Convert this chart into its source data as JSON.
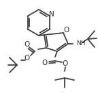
{
  "bg_color": "#ffffff",
  "line_color": "#404040",
  "line_width": 1.3,
  "figsize": [
    1.44,
    1.52
  ],
  "dpi": 100,
  "xlim": [
    0,
    144
  ],
  "ylim": [
    0,
    152
  ]
}
